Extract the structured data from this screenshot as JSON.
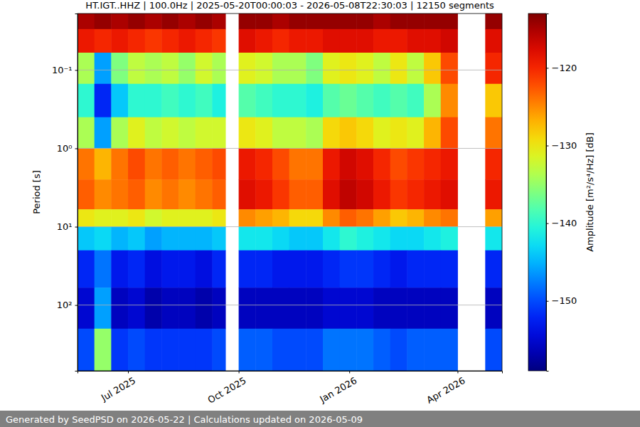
{
  "chart_data": {
    "type": "heatmap",
    "title": "HT.IGT..HHZ | 100.0Hz | 2025-05-20T00:00:03 - 2026-05-08T22:30:03 | 12150 segments",
    "y_label": "Period [s]",
    "footer": "Generated by SeedPSD on 2026-05-22 | Calculations updated on 2026-05-09",
    "log": "y",
    "grid": true,
    "xlim": [
      "2025-05-20",
      "2026-05-08"
    ],
    "ylim": [
      690,
      0.019
    ],
    "xticks": [
      {
        "value": "2025-07-01",
        "label": "Jul 2025"
      },
      {
        "value": "2025-10-01",
        "label": "Oct 2025"
      },
      {
        "value": "2026-01-01",
        "label": "Jan 2026"
      },
      {
        "value": "2026-04-01",
        "label": "Apr 2026"
      }
    ],
    "yticks": [
      {
        "value": 0.1,
        "label": "10⁻¹"
      },
      {
        "value": 1,
        "label": "10⁰"
      },
      {
        "value": 10,
        "label": "10¹"
      },
      {
        "value": 100,
        "label": "10²"
      }
    ],
    "x_edges": [
      "2025-05-20",
      "2025-06-03",
      "2025-06-17",
      "2025-07-01",
      "2025-07-15",
      "2025-07-29",
      "2025-08-12",
      "2025-08-26",
      "2025-09-09",
      "2025-09-20",
      "2025-10-01",
      "2025-10-15",
      "2025-10-29",
      "2025-11-12",
      "2025-11-26",
      "2025-12-10",
      "2025-12-24",
      "2026-01-07",
      "2026-01-21",
      "2026-02-04",
      "2026-02-18",
      "2026-03-04",
      "2026-03-18",
      "2026-04-01",
      "2026-04-24",
      "2026-05-08"
    ],
    "y_edges": [
      0.019,
      0.03,
      0.06,
      0.15,
      0.4,
      1,
      2.5,
      6,
      10,
      20,
      60,
      200,
      690
    ],
    "cells": [
      [
        -115,
        -114,
        -115,
        -114,
        -115,
        -114,
        -115,
        -114,
        -115,
        null,
        -114,
        -114,
        -115,
        -114,
        -114,
        -114,
        -114,
        -114,
        -115,
        -114,
        -114,
        -114,
        -114,
        null,
        -114
      ],
      [
        -119,
        -120,
        -119,
        -120,
        -121,
        -120,
        -119,
        -120,
        -121,
        null,
        -118,
        -119,
        -120,
        -119,
        -119,
        -118,
        -118,
        -118,
        -119,
        -119,
        -118,
        -118,
        -117,
        null,
        -118
      ],
      [
        -134,
        -146,
        -136,
        -133,
        -134,
        -133,
        -135,
        -132,
        -134,
        null,
        -131,
        -132,
        -134,
        -134,
        -136,
        -131,
        -130,
        -131,
        -133,
        -130,
        -133,
        -128,
        -122,
        null,
        -120
      ],
      [
        -140,
        -152,
        -144,
        -140,
        -140,
        -139,
        -140,
        -139,
        -141,
        null,
        -138,
        -139,
        -140,
        -140,
        -141,
        -138,
        -137,
        -138,
        -139,
        -138,
        -139,
        -134,
        -125,
        null,
        -128
      ],
      [
        -134,
        -146,
        -134,
        -131,
        -133,
        -132,
        -133,
        -132,
        -132,
        null,
        -130,
        -131,
        -133,
        -133,
        -134,
        -129,
        -128,
        -129,
        -131,
        -130,
        -131,
        -127,
        -122,
        null,
        -124
      ],
      [
        -124,
        -127,
        -124,
        -122,
        -124,
        -123,
        -124,
        -123,
        -122,
        null,
        -119,
        -120,
        -122,
        -124,
        -124,
        -119,
        -117,
        -118,
        -120,
        -122,
        -121,
        -120,
        -119,
        null,
        -120
      ],
      [
        -123,
        -125,
        -124,
        -123,
        -125,
        -124,
        -125,
        -124,
        -123,
        null,
        -118,
        -119,
        -121,
        -123,
        -123,
        -118,
        -116,
        -117,
        -119,
        -121,
        -120,
        -119,
        -118,
        null,
        -119
      ],
      [
        -130,
        -131,
        -131,
        -130,
        -132,
        -131,
        -131,
        -131,
        -130,
        null,
        -125,
        -126,
        -127,
        -129,
        -129,
        -125,
        -123,
        -124,
        -126,
        -128,
        -127,
        -125,
        -124,
        null,
        -126
      ],
      [
        -144,
        -143,
        -145,
        -144,
        -146,
        -145,
        -145,
        -145,
        -144,
        null,
        -142,
        -142,
        -143,
        -144,
        -144,
        -142,
        -140,
        -141,
        -142,
        -143,
        -143,
        -142,
        -141,
        null,
        -142
      ],
      [
        -152,
        -148,
        -153,
        -152,
        -154,
        -153,
        -153,
        -154,
        -152,
        null,
        -152,
        -152,
        -153,
        -153,
        -153,
        -152,
        -151,
        -151,
        -152,
        -153,
        -152,
        -152,
        -152,
        null,
        -152
      ],
      [
        -155,
        -146,
        -156,
        -155,
        -157,
        -156,
        -156,
        -157,
        -156,
        null,
        -156,
        -156,
        -156,
        -156,
        -156,
        -155,
        -155,
        -155,
        -156,
        -156,
        -156,
        -156,
        -156,
        null,
        -156
      ],
      [
        -150,
        -135,
        -151,
        -150,
        -151,
        -151,
        -151,
        -151,
        -150,
        null,
        -149,
        -149,
        -150,
        -150,
        -150,
        -148,
        -148,
        -148,
        -149,
        -150,
        -149,
        -149,
        -149,
        null,
        -150
      ]
    ],
    "colorbar": {
      "label": "Amplitude [m²/s⁴/Hz] [dB]",
      "range": [
        -159,
        -113
      ],
      "ticks": [
        {
          "value": -120,
          "label": "−120"
        },
        {
          "value": -130,
          "label": "−130"
        },
        {
          "value": -140,
          "label": "−140"
        },
        {
          "value": -150,
          "label": "−150"
        }
      ]
    }
  }
}
